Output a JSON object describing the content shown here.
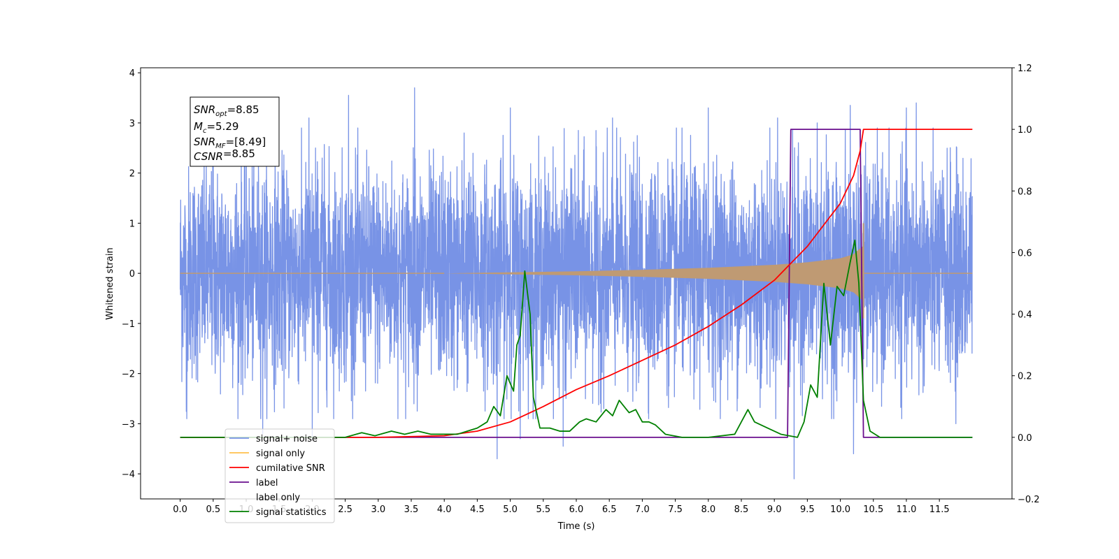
{
  "chart_data": {
    "type": "line",
    "xlabel": "Time (s)",
    "ylabel": "Whitened strain",
    "xlim": [
      -0.6,
      12.6
    ],
    "ylim_left": [
      -4.5,
      4.1
    ],
    "ylim_right": [
      -0.2,
      1.2
    ],
    "x_ticks": [
      0.0,
      0.5,
      1.0,
      1.5,
      2.0,
      2.5,
      3.0,
      3.5,
      4.0,
      4.5,
      5.0,
      5.5,
      6.0,
      6.5,
      7.0,
      7.5,
      8.0,
      8.5,
      9.0,
      9.5,
      10.0,
      10.5,
      11.0,
      11.5
    ],
    "x_tick_labels": [
      "0.0",
      "0.5",
      "1.0",
      "1.5",
      "2.0",
      "2.5",
      "3.0",
      "3.5",
      "4.0",
      "4.5",
      "5.0",
      "5.5",
      "6.0",
      "6.5",
      "7.0",
      "7.5",
      "8.0",
      "8.5",
      "9.0",
      "9.5",
      "10.0",
      "10.5",
      "11.0",
      "11.5"
    ],
    "y_left_ticks": [
      -4,
      -3,
      -2,
      -1,
      0,
      1,
      2,
      3,
      4
    ],
    "y_left_tick_labels": [
      "−4",
      "−3",
      "−2",
      "−1",
      "0",
      "1",
      "2",
      "3",
      "4"
    ],
    "y_right_ticks": [
      -0.2,
      0.0,
      0.2,
      0.4,
      0.6,
      0.8,
      1.0,
      1.2
    ],
    "y_right_tick_labels": [
      "−0.2",
      "0.0",
      "0.2",
      "0.4",
      "0.6",
      "0.8",
      "1.0",
      "1.2"
    ],
    "grid": false,
    "legend_position": "lower-left",
    "annotation": {
      "lines": [
        {
          "pre": "SNR",
          "sub": "opt",
          "post": "=8.85"
        },
        {
          "pre": "M",
          "sub": "c",
          "post": "=5.29"
        },
        {
          "pre": "SNR",
          "sub": "MF",
          "post": "=[8.49]"
        },
        {
          "pre": "CSNR",
          "sub": "",
          "post": "=8.85"
        }
      ]
    },
    "series": [
      {
        "name": "signal+ noise",
        "axis": "left",
        "color": "#7893e6",
        "kind": "noise",
        "x_range": [
          0.0,
          12.0
        ],
        "std": 1.05,
        "spikes": [
          {
            "x": 1.95,
            "y": 3.1
          },
          {
            "x": 2.05,
            "y": 2.5
          },
          {
            "x": 2.15,
            "y": 2.3
          },
          {
            "x": 2.55,
            "y": 3.55
          },
          {
            "x": 3.55,
            "y": 3.7
          },
          {
            "x": 4.3,
            "y": 2.8
          },
          {
            "x": 5.0,
            "y": 3.3
          },
          {
            "x": 6.55,
            "y": 3.1
          },
          {
            "x": 8.0,
            "y": 3.3
          },
          {
            "x": 9.05,
            "y": 3.1
          },
          {
            "x": 9.65,
            "y": 3.0
          },
          {
            "x": 10.15,
            "y": 3.35
          },
          {
            "x": 11.0,
            "y": 3.3
          },
          {
            "x": 11.15,
            "y": 3.4
          },
          {
            "x": 1.25,
            "y": -3.2
          },
          {
            "x": 2.0,
            "y": -3.3
          },
          {
            "x": 4.8,
            "y": -3.7
          },
          {
            "x": 5.15,
            "y": -3.3
          },
          {
            "x": 5.8,
            "y": -3.45
          },
          {
            "x": 9.3,
            "y": -4.1
          },
          {
            "x": 10.2,
            "y": -3.6
          },
          {
            "x": 11.75,
            "y": -3.0
          },
          {
            "x": 0.1,
            "y": -2.9
          },
          {
            "x": 0.5,
            "y": 3.05
          }
        ]
      },
      {
        "name": "signal only",
        "axis": "left",
        "color": "#ffc04d",
        "fill_color": "#bf9a73",
        "kind": "chirp",
        "x_range": [
          0.0,
          12.0
        ],
        "merger_x": 10.35,
        "peak_amplitude": 1.0,
        "envelope": [
          {
            "x": 0.0,
            "y": 0.0
          },
          {
            "x": 4.0,
            "y": 0.0
          },
          {
            "x": 5.0,
            "y": 0.02
          },
          {
            "x": 6.0,
            "y": 0.04
          },
          {
            "x": 7.0,
            "y": 0.07
          },
          {
            "x": 8.0,
            "y": 0.11
          },
          {
            "x": 9.0,
            "y": 0.17
          },
          {
            "x": 9.5,
            "y": 0.22
          },
          {
            "x": 10.0,
            "y": 0.3
          },
          {
            "x": 10.2,
            "y": 0.38
          },
          {
            "x": 10.3,
            "y": 0.5
          },
          {
            "x": 10.35,
            "y": 0.55
          }
        ]
      },
      {
        "name": "cumilative SNR",
        "axis": "right",
        "color": "#ff0000",
        "points": [
          {
            "x": 0.0,
            "y": 0.0
          },
          {
            "x": 3.0,
            "y": 0.0
          },
          {
            "x": 4.0,
            "y": 0.005
          },
          {
            "x": 4.5,
            "y": 0.02
          },
          {
            "x": 5.0,
            "y": 0.05
          },
          {
            "x": 5.5,
            "y": 0.1
          },
          {
            "x": 6.0,
            "y": 0.155
          },
          {
            "x": 6.5,
            "y": 0.2
          },
          {
            "x": 7.0,
            "y": 0.25
          },
          {
            "x": 7.5,
            "y": 0.3
          },
          {
            "x": 8.0,
            "y": 0.36
          },
          {
            "x": 8.5,
            "y": 0.43
          },
          {
            "x": 9.0,
            "y": 0.51
          },
          {
            "x": 9.5,
            "y": 0.62
          },
          {
            "x": 10.0,
            "y": 0.76
          },
          {
            "x": 10.2,
            "y": 0.85
          },
          {
            "x": 10.3,
            "y": 0.93
          },
          {
            "x": 10.35,
            "y": 1.0
          },
          {
            "x": 11.0,
            "y": 1.0
          },
          {
            "x": 11.5,
            "y": 1.0
          },
          {
            "x": 12.0,
            "y": 1.0
          }
        ]
      },
      {
        "name": "label",
        "axis": "right",
        "color": "#6a0f8e",
        "points": [
          {
            "x": 0.0,
            "y": 0.0
          },
          {
            "x": 9.2,
            "y": 0.0
          },
          {
            "x": 9.25,
            "y": 1.0
          },
          {
            "x": 10.3,
            "y": 1.0
          },
          {
            "x": 10.35,
            "y": 0.0
          },
          {
            "x": 12.0,
            "y": 0.0
          }
        ]
      },
      {
        "name": "label only",
        "axis": "right",
        "color": "#999999",
        "visible": false,
        "points": []
      },
      {
        "name": "signal statistics",
        "axis": "right",
        "color": "#008000",
        "points": [
          {
            "x": 0.0,
            "y": 0.0
          },
          {
            "x": 2.5,
            "y": 0.0
          },
          {
            "x": 2.75,
            "y": 0.015
          },
          {
            "x": 2.95,
            "y": 0.005
          },
          {
            "x": 3.2,
            "y": 0.02
          },
          {
            "x": 3.4,
            "y": 0.01
          },
          {
            "x": 3.6,
            "y": 0.02
          },
          {
            "x": 3.8,
            "y": 0.01
          },
          {
            "x": 4.0,
            "y": 0.01
          },
          {
            "x": 4.2,
            "y": 0.01
          },
          {
            "x": 4.35,
            "y": 0.02
          },
          {
            "x": 4.5,
            "y": 0.03
          },
          {
            "x": 4.65,
            "y": 0.05
          },
          {
            "x": 4.75,
            "y": 0.1
          },
          {
            "x": 4.85,
            "y": 0.07
          },
          {
            "x": 4.95,
            "y": 0.2
          },
          {
            "x": 5.05,
            "y": 0.15
          },
          {
            "x": 5.1,
            "y": 0.3
          },
          {
            "x": 5.15,
            "y": 0.33
          },
          {
            "x": 5.22,
            "y": 0.54
          },
          {
            "x": 5.3,
            "y": 0.4
          },
          {
            "x": 5.35,
            "y": 0.13
          },
          {
            "x": 5.45,
            "y": 0.03
          },
          {
            "x": 5.6,
            "y": 0.03
          },
          {
            "x": 5.75,
            "y": 0.02
          },
          {
            "x": 5.9,
            "y": 0.02
          },
          {
            "x": 6.05,
            "y": 0.05
          },
          {
            "x": 6.15,
            "y": 0.06
          },
          {
            "x": 6.3,
            "y": 0.05
          },
          {
            "x": 6.45,
            "y": 0.09
          },
          {
            "x": 6.55,
            "y": 0.07
          },
          {
            "x": 6.65,
            "y": 0.12
          },
          {
            "x": 6.8,
            "y": 0.08
          },
          {
            "x": 6.9,
            "y": 0.09
          },
          {
            "x": 7.0,
            "y": 0.05
          },
          {
            "x": 7.1,
            "y": 0.05
          },
          {
            "x": 7.2,
            "y": 0.04
          },
          {
            "x": 7.35,
            "y": 0.01
          },
          {
            "x": 7.6,
            "y": 0.0
          },
          {
            "x": 8.0,
            "y": 0.0
          },
          {
            "x": 8.4,
            "y": 0.01
          },
          {
            "x": 8.5,
            "y": 0.05
          },
          {
            "x": 8.6,
            "y": 0.09
          },
          {
            "x": 8.7,
            "y": 0.05
          },
          {
            "x": 8.9,
            "y": 0.03
          },
          {
            "x": 9.1,
            "y": 0.01
          },
          {
            "x": 9.35,
            "y": 0.0
          },
          {
            "x": 9.45,
            "y": 0.05
          },
          {
            "x": 9.55,
            "y": 0.17
          },
          {
            "x": 9.65,
            "y": 0.13
          },
          {
            "x": 9.75,
            "y": 0.5
          },
          {
            "x": 9.85,
            "y": 0.3
          },
          {
            "x": 9.95,
            "y": 0.49
          },
          {
            "x": 10.05,
            "y": 0.46
          },
          {
            "x": 10.15,
            "y": 0.57
          },
          {
            "x": 10.22,
            "y": 0.64
          },
          {
            "x": 10.28,
            "y": 0.5
          },
          {
            "x": 10.35,
            "y": 0.12
          },
          {
            "x": 10.45,
            "y": 0.02
          },
          {
            "x": 10.6,
            "y": 0.0
          },
          {
            "x": 12.0,
            "y": 0.0
          }
        ]
      }
    ]
  }
}
